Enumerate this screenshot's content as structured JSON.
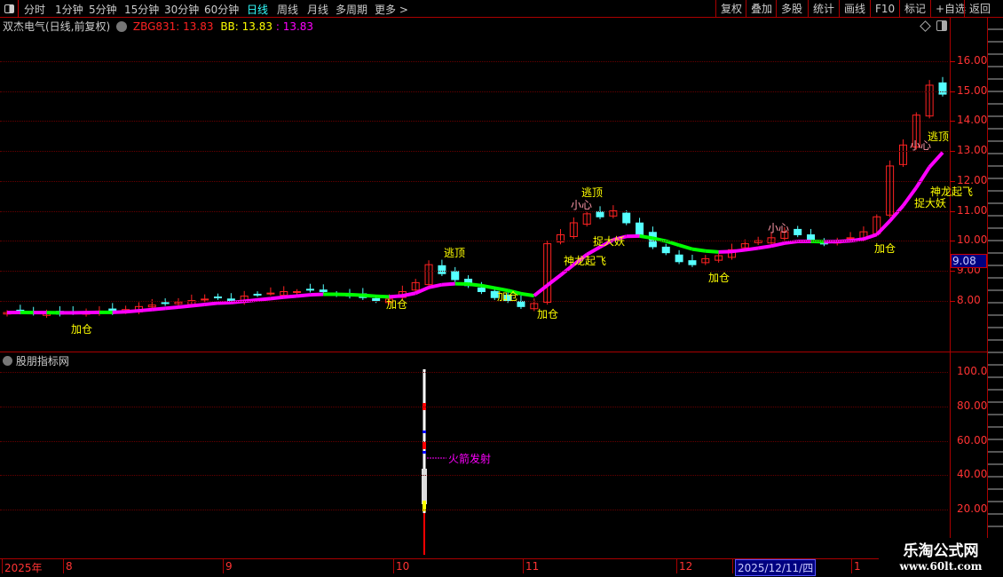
{
  "toolbar": {
    "periods": [
      "分时",
      "1分钟",
      "5分钟",
      "15分钟",
      "30分钟",
      "60分钟",
      "日线",
      "周线",
      "月线",
      "多周期",
      "更多 >"
    ],
    "active_period": "日线",
    "buttons": [
      "复权",
      "叠加",
      "多股",
      "统计",
      "画线",
      "F10",
      "标记",
      "+自选",
      "返回"
    ]
  },
  "header": {
    "title": "双杰电气(日线,前复权)",
    "zbg_label": "ZBG831: 13.83",
    "bb_label": "BB: 13.83",
    "third_label": ": 13.83"
  },
  "colors": {
    "up": "#ff2222",
    "down": "#55ffff",
    "ma": "#ff00ff",
    "ma_alt": "#ffff00",
    "ma_green": "#00ff00",
    "axis": "#ff3333",
    "current_price_bg": "#000080"
  },
  "price_axis": {
    "ticks": [
      "16.00",
      "15.00",
      "14.00",
      "13.00",
      "12.00",
      "11.00",
      "10.00",
      "9.00",
      "8.00"
    ],
    "current_price": "9.08"
  },
  "chart_data": {
    "type": "candlestick",
    "ylim": [
      7.0,
      17.0
    ],
    "closes": [
      7.6,
      7.62,
      7.58,
      7.6,
      7.55,
      7.6,
      7.62,
      7.65,
      7.6,
      7.7,
      7.8,
      7.85,
      7.9,
      7.95,
      8.0,
      8.05,
      8.1,
      8.0,
      8.15,
      8.2,
      8.25,
      8.3,
      8.3,
      8.35,
      8.3,
      8.2,
      8.15,
      8.1,
      8.0,
      8.05,
      8.3,
      8.6,
      9.2,
      8.9,
      8.7,
      8.5,
      8.3,
      8.1,
      8.0,
      7.8,
      7.9,
      9.9,
      10.2,
      10.6,
      10.9,
      10.8,
      11.0,
      10.6,
      10.2,
      9.8,
      9.6,
      9.3,
      9.2,
      9.4,
      9.5,
      9.7,
      9.9,
      10.0,
      10.1,
      10.3,
      10.2,
      10.0,
      9.9,
      10.0,
      10.1,
      10.3,
      10.8,
      12.5,
      13.2,
      14.2,
      15.2,
      14.9
    ]
  },
  "annotations": [
    "加仓",
    "逃顶",
    "加仓",
    "加仓",
    "加仓",
    "逃顶",
    "小心",
    "神龙起飞",
    "捉大妖",
    "加仓",
    "小心",
    "加仓",
    "逃顶",
    "小心",
    "神龙起飞",
    "捉大妖"
  ],
  "indicator": {
    "title": "股朋指标网",
    "ticks": [
      "100.0",
      "80.00",
      "60.00",
      "40.00",
      "20.00"
    ],
    "signal_label": "火箭发射"
  },
  "date_axis": [
    "2025年",
    "8",
    "9",
    "10",
    "11",
    "12",
    "2025/12/11/四",
    "1"
  ],
  "watermark": {
    "name": "乐淘公式网",
    "url": "www.60lt.com"
  }
}
